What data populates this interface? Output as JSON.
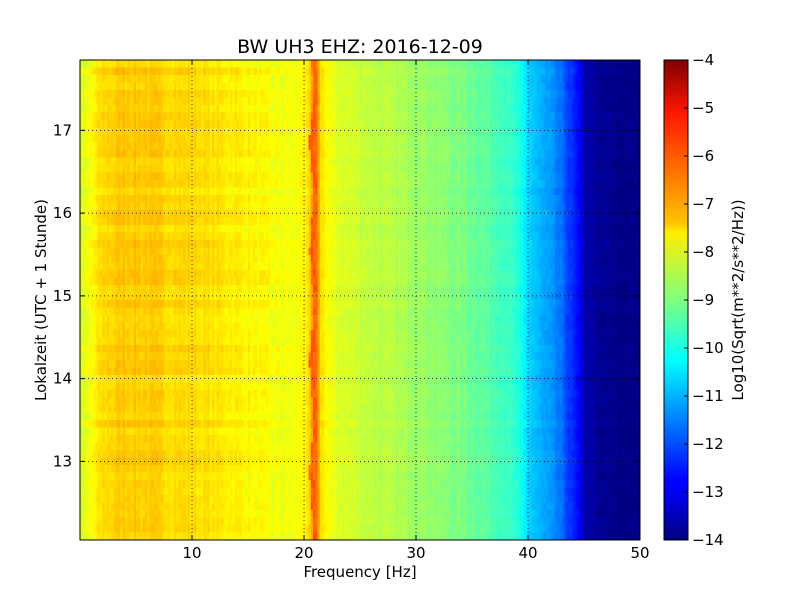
{
  "chart_data": {
    "type": "heatmap",
    "title": "BW UH3 EHZ: 2016-12-09",
    "xlabel": "Frequency [Hz]",
    "ylabel": "Lokalzeit (UTC + 1 Stunde)",
    "colorbar_label": "Log10(Sqrt(m**2/s**2/Hz))",
    "xlim": [
      0,
      50
    ],
    "ylim": [
      17.85,
      12.05
    ],
    "x_ticks": [
      10,
      20,
      30,
      40,
      50
    ],
    "x_tick_labels": [
      "10",
      "20",
      "30",
      "40",
      "50"
    ],
    "y_ticks": [
      13,
      14,
      15,
      16,
      17
    ],
    "y_tick_labels": [
      "13",
      "14",
      "15",
      "16",
      "17"
    ],
    "colorbar_range": [
      -14,
      -4
    ],
    "colorbar_ticks": [
      -4,
      -5,
      -6,
      -7,
      -8,
      -9,
      -10,
      -11,
      -12,
      -13,
      -14
    ],
    "colorbar_tick_labels": [
      "−4",
      "−5",
      "−6",
      "−7",
      "−8",
      "−9",
      "−10",
      "−11",
      "−12",
      "−13",
      "−14"
    ],
    "colormap": "jet",
    "grid": true,
    "frequency_profile": {
      "frequency_hz": [
        0,
        1,
        2,
        4,
        6,
        8,
        10,
        12,
        14,
        16,
        18,
        19.5,
        20.5,
        21,
        21.5,
        22.5,
        24,
        26,
        28,
        30,
        32,
        34,
        36,
        38,
        39,
        40,
        41,
        42,
        43,
        44,
        45,
        46,
        50
      ],
      "log10_amplitude": [
        -8.2,
        -7.8,
        -7.4,
        -7.2,
        -7.25,
        -7.35,
        -7.4,
        -7.5,
        -7.6,
        -7.75,
        -7.9,
        -7.85,
        -7.4,
        -6.2,
        -7.4,
        -8.0,
        -8.15,
        -8.35,
        -8.5,
        -8.65,
        -8.85,
        -9.05,
        -9.3,
        -9.6,
        -9.9,
        -10.6,
        -11.0,
        -11.3,
        -11.7,
        -12.4,
        -13.2,
        -13.8,
        -14.0
      ]
    },
    "peak_line": {
      "label_hz": 21,
      "log10_amplitude": -6.2
    }
  }
}
